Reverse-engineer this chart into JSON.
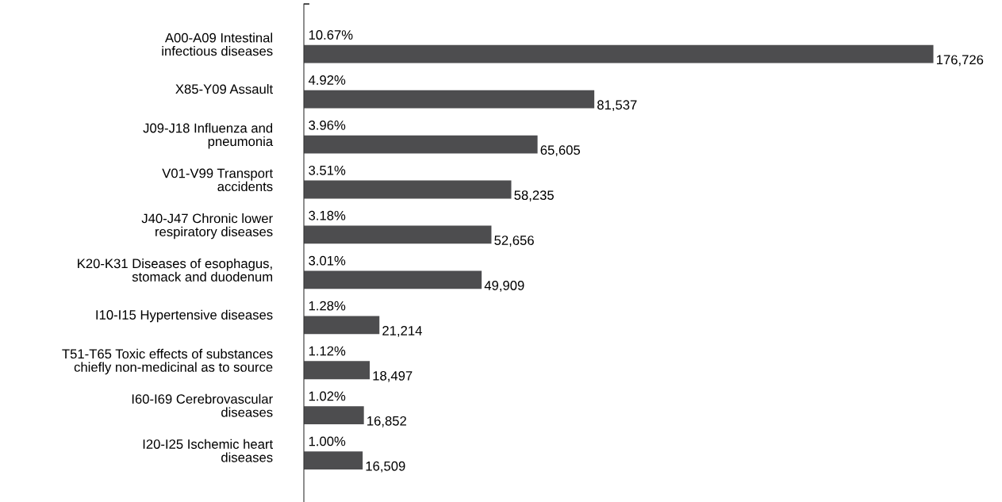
{
  "chart_data": {
    "type": "bar",
    "orientation": "horizontal",
    "categories": [
      "A00-A09 Intestinal\ninfectious diseases",
      "X85-Y09 Assault",
      "J09-J18 Influenza and\npneumonia",
      "V01-V99 Transport\naccidents",
      "J40-J47 Chronic lower\nrespiratory diseases",
      "K20-K31 Diseases of esophagus,\nstomack and duodenum",
      "I10-I15 Hypertensive diseases",
      "T51-T65 Toxic effects of substances\nchiefly non-medicinal as to source",
      "I60-I69 Cerebrovascular\ndiseases",
      "I20-I25 Ischemic heart\ndiseases"
    ],
    "values": [
      176726,
      81537,
      65605,
      58235,
      52656,
      49909,
      21214,
      18497,
      16852,
      16509
    ],
    "value_labels": [
      "176,726",
      "81,537",
      "65,605",
      "58,235",
      "52,656",
      "49,909",
      "21,214",
      "18,497",
      "16,852",
      "16,509"
    ],
    "color": "#4d4d4f",
    "tick_labels": "y",
    "grid": false,
    "legend": false,
    "annotations": [
      {
        "text": "10.67%",
        "y": "A00-A09 Intestinal\ninfectious diseases"
      },
      {
        "text": "4.92%",
        "y": "X85-Y09 Assault"
      },
      {
        "text": "3.96%",
        "y": "J09-J18 Influenza and\npneumonia"
      },
      {
        "text": "3.51%",
        "y": "V01-V99 Transport\naccidents"
      },
      {
        "text": "3.18%",
        "y": "J40-J47 Chronic lower\nrespiratory diseases"
      },
      {
        "text": "3.01%",
        "y": "K20-K31 Diseases of esophagus,\nstomack and duodenum"
      },
      {
        "text": "1.28%",
        "y": "I10-I15 Hypertensive diseases"
      },
      {
        "text": "1.12%",
        "y": "T51-T65 Toxic effects of substances\nchiefly non-medicinal as to source"
      },
      {
        "text": "1.02%",
        "y": "I60-I69 Cerebrovascular\ndiseases"
      },
      {
        "text": "1.00%",
        "y": "I20-I25 Ischemic heart\ndiseases"
      }
    ]
  }
}
